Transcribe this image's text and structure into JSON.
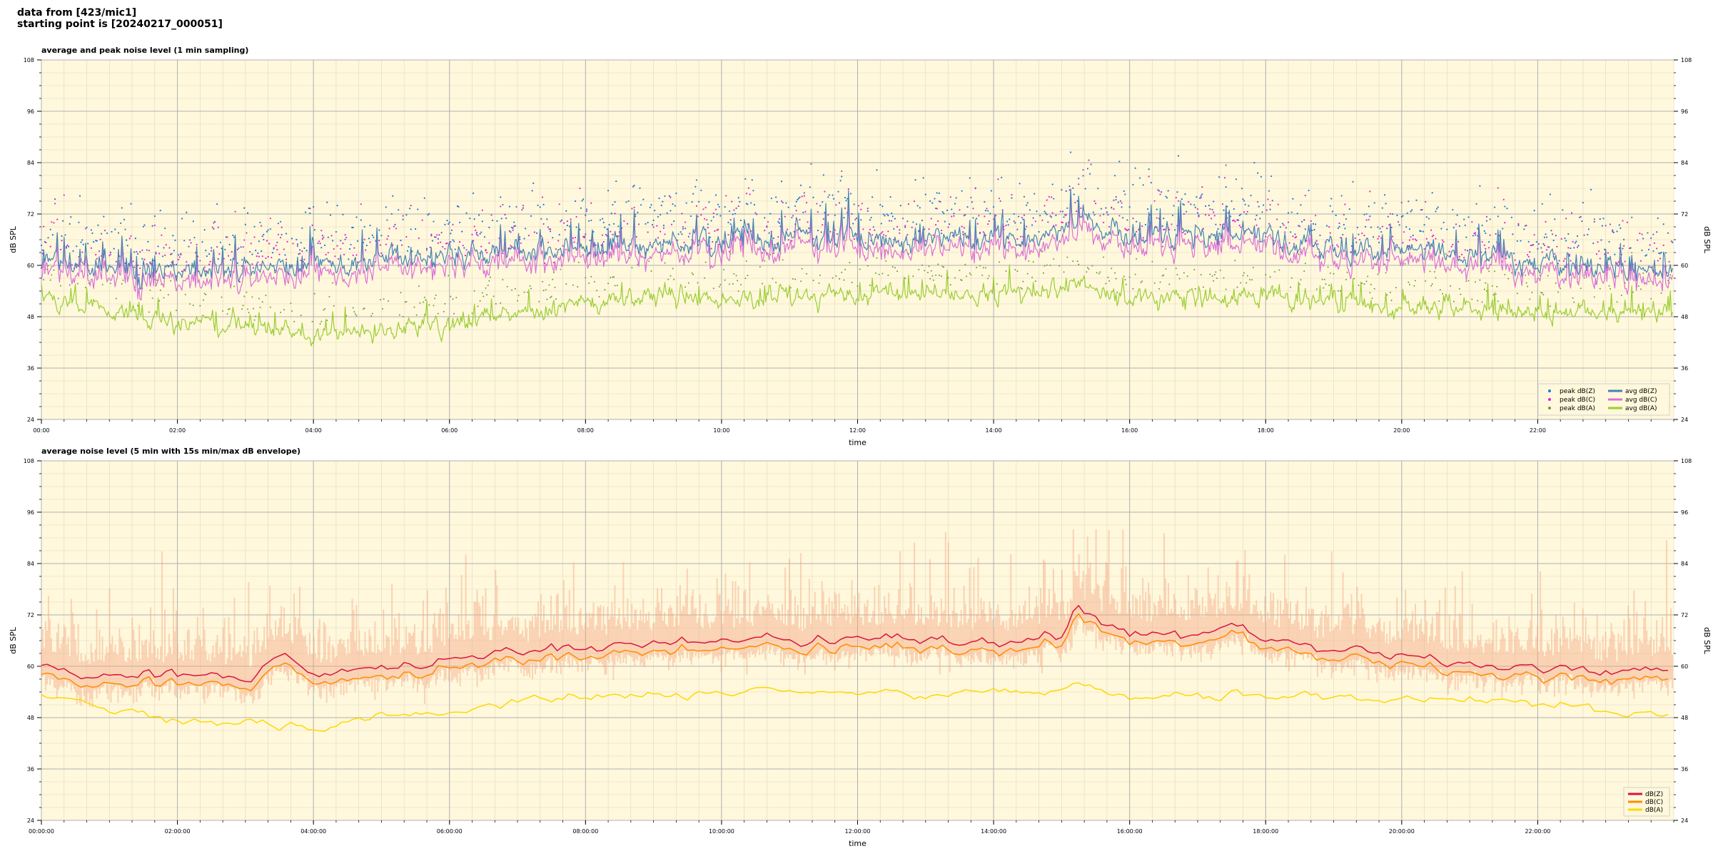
{
  "header": {
    "line1": "data from [423/mic1]",
    "line2": "starting point is [20240217_000051]"
  },
  "chart_data": [
    {
      "type": "line",
      "title": "average and peak noise level (1 min sampling)",
      "xlabel": "time",
      "ylabel": "dB SPL",
      "xlim_hours": [
        0,
        24
      ],
      "ylim": [
        24,
        108
      ],
      "yticks": [
        "24",
        "36",
        "48",
        "60",
        "72",
        "84",
        "96",
        "108"
      ],
      "xticks": [
        "00:00",
        "02:00",
        "04:00",
        "06:00",
        "08:00",
        "10:00",
        "12:00",
        "14:00",
        "16:00",
        "18:00",
        "20:00",
        "22:00"
      ],
      "grid": true,
      "legend_position": "bottom-right",
      "background": "#fff8dc",
      "series": [
        {
          "name": "peak dB(Z)",
          "kind": "scatter",
          "color": "#1f77d4"
        },
        {
          "name": "peak dB(C)",
          "kind": "scatter",
          "color": "#e81fd0"
        },
        {
          "name": "peak dB(A)",
          "kind": "scatter",
          "color": "#6b9b3a"
        },
        {
          "name": "avg dB(Z)",
          "kind": "line",
          "color": "#4682b4"
        },
        {
          "name": "avg dB(C)",
          "kind": "line",
          "color": "#da70d6"
        },
        {
          "name": "avg dB(A)",
          "kind": "line",
          "color": "#9acd32"
        }
      ],
      "profile_hours": [
        0,
        1,
        2,
        3,
        4,
        5,
        6,
        7,
        8,
        9,
        10,
        11,
        12,
        13,
        14,
        15,
        15.3,
        16,
        17,
        17.6,
        18,
        19,
        20,
        21,
        22,
        23,
        24
      ],
      "avg_z_profile": [
        61,
        59,
        59,
        59,
        60,
        61,
        62,
        63,
        64,
        65,
        66,
        66,
        66,
        66,
        66,
        67,
        71,
        66,
        67,
        68,
        66,
        65,
        63,
        62,
        61,
        60,
        60
      ],
      "avg_a_profile": [
        52,
        49,
        47,
        46,
        44,
        45,
        46,
        49,
        51,
        53,
        53,
        53,
        53,
        53,
        53,
        54,
        56,
        52,
        53,
        53,
        53,
        52,
        50,
        50,
        49,
        49,
        49
      ]
    },
    {
      "type": "line",
      "title": "average noise level (5 min with 15s min/max dB envelope)",
      "xlabel": "time",
      "ylabel": "dB SPL",
      "xlim_hours": [
        0,
        24
      ],
      "ylim": [
        24,
        108
      ],
      "yticks": [
        "24",
        "36",
        "48",
        "60",
        "72",
        "84",
        "96",
        "108"
      ],
      "xticks": [
        "00:00:00",
        "02:00:00",
        "04:00:00",
        "06:00:00",
        "08:00:00",
        "10:00:00",
        "12:00:00",
        "14:00:00",
        "16:00:00",
        "18:00:00",
        "20:00:00",
        "22:00:00"
      ],
      "grid": true,
      "legend_position": "bottom-right",
      "background": "#fff8dc",
      "envelope_color": "#f4a582",
      "series": [
        {
          "name": "dB(Z)",
          "color": "#dc143c"
        },
        {
          "name": "dB(C)",
          "color": "#ff8c00"
        },
        {
          "name": "dB(A)",
          "color": "#ffd700"
        }
      ],
      "profile_hours": [
        0,
        1,
        2,
        3,
        3.6,
        4,
        5,
        6,
        7,
        8,
        9,
        10,
        11,
        12,
        13,
        14,
        15,
        15.2,
        16,
        17,
        17.6,
        18,
        19,
        20,
        21,
        22,
        23,
        24
      ],
      "z_profile": [
        60,
        58,
        58,
        58,
        63,
        58,
        59,
        61,
        64,
        64,
        65,
        66,
        66,
        66,
        66,
        66,
        67,
        73,
        67,
        67,
        70,
        66,
        64,
        62,
        61,
        60,
        59,
        59
      ],
      "a_profile": [
        54,
        50,
        48,
        47,
        46,
        45,
        48,
        49,
        52,
        53,
        53,
        54,
        54,
        54,
        53,
        54,
        54,
        56,
        53,
        53,
        54,
        53,
        53,
        52,
        52,
        51,
        49,
        49
      ]
    }
  ]
}
